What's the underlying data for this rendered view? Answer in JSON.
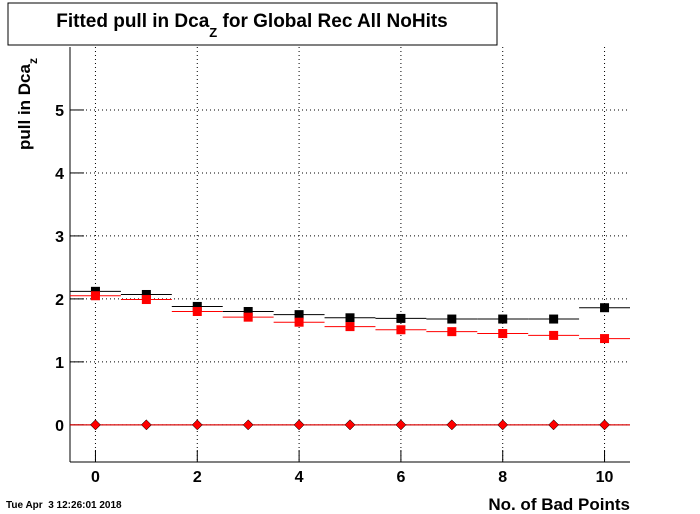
{
  "chart_data": {
    "type": "scatter",
    "title": {
      "main": "Fitted pull in Dca",
      "sub": "Z",
      "rest": " for Global Rec All NoHits"
    },
    "y_label": {
      "main": "pull in Dca",
      "sub": "z"
    },
    "x_label": "No. of Bad Points",
    "timestamp": "Tue Apr  3 12:26:01 2018",
    "x": [
      0,
      1,
      2,
      3,
      4,
      5,
      6,
      7,
      8,
      9,
      10
    ],
    "series": [
      {
        "color": "#000000",
        "marker": "square",
        "values": [
          2.12,
          2.07,
          1.88,
          1.8,
          1.75,
          1.7,
          1.69,
          1.68,
          1.68,
          1.68,
          1.86
        ]
      },
      {
        "color": "#ff0000",
        "marker": "square",
        "values": [
          2.05,
          1.99,
          1.8,
          1.71,
          1.63,
          1.56,
          1.51,
          1.48,
          1.45,
          1.42,
          1.37
        ]
      },
      {
        "color": "#000000",
        "marker": "diamond",
        "values": [
          0,
          0,
          0,
          0,
          0,
          0,
          0,
          0,
          0,
          0,
          0
        ]
      },
      {
        "color": "#ff0000",
        "marker": "diamond",
        "values": [
          0,
          0,
          0,
          0,
          0,
          0,
          0,
          0,
          0,
          0,
          0
        ]
      }
    ],
    "xlim": [
      -0.5,
      10.5
    ],
    "ylim": [
      -0.59,
      6.0
    ],
    "xticks": [
      0,
      2,
      4,
      6,
      8,
      10
    ],
    "yticks": [
      0,
      1,
      2,
      3,
      4,
      5
    ],
    "grid": true
  }
}
